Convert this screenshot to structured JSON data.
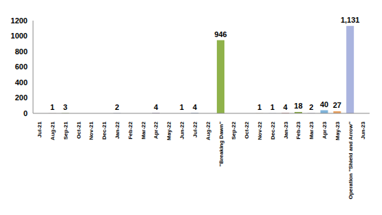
{
  "chart_data": {
    "type": "bar",
    "categories": [
      "Jul-21",
      "Aug-21",
      "Sep-21",
      "Oct-21",
      "Nov-21",
      "Dec-21",
      "Jan-22",
      "Feb-22",
      "Mar-22",
      "Apr-22",
      "May-22",
      "Jun-22",
      "Jul-22",
      "Aug-22",
      "\"Breaking Dawn\"",
      "Sep-22",
      "Oct-22",
      "Nov-22",
      "Dec-22",
      "Jan-23",
      "Feb-23",
      "Mar-23",
      "Apr-23",
      "May-23",
      "Operation \"Shield and Arrow\"",
      "Jun-23"
    ],
    "values": [
      0,
      1,
      3,
      0,
      0,
      0,
      2,
      0,
      0,
      4,
      0,
      1,
      4,
      0,
      946,
      0,
      0,
      1,
      1,
      4,
      18,
      2,
      40,
      27,
      1131,
      0
    ],
    "colors": [
      "#4f6fae",
      "#b04a4a",
      "#7d9a3e",
      "#6a4f8f",
      "#3c8da6",
      "#d9822b",
      "#5a77b8",
      "#a84444",
      "#86a646",
      "#735598",
      "#4296b0",
      "#e08a30",
      "#4f6fae",
      "#b04a4a",
      "#8fb24a",
      "#6a4f8f",
      "#3c8da6",
      "#d9822b",
      "#5a77b8",
      "#a84444",
      "#86a646",
      "#735598",
      "#7fb3d9",
      "#e8a060",
      "#aab4df",
      "#d9a0a0"
    ],
    "ylim": [
      0,
      1200
    ],
    "yticks": [
      0,
      200,
      400,
      600,
      800,
      1000,
      1200
    ],
    "grid": false,
    "data_labels": true
  }
}
